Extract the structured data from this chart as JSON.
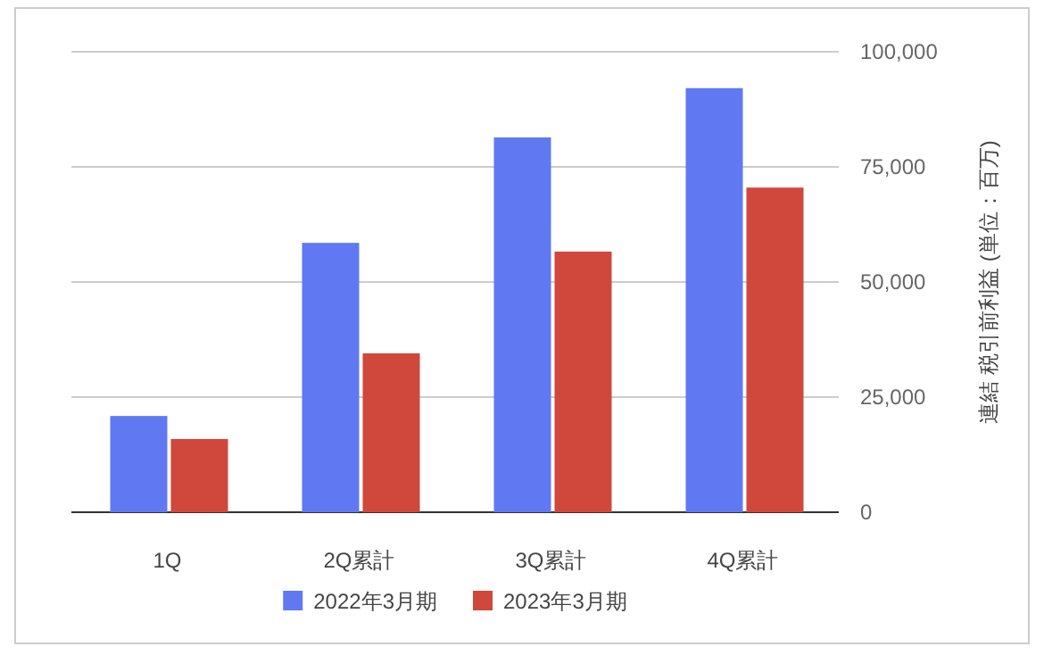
{
  "chart_data": {
    "type": "bar",
    "ylabel": "連結 税引前利益 (単位：百万)",
    "categories": [
      "1Q",
      "2Q累計",
      "3Q累計",
      "4Q累計"
    ],
    "series": [
      {
        "name": "2022年3月期",
        "color": "#6079f2",
        "values": [
          20900,
          58500,
          81400,
          92100
        ]
      },
      {
        "name": "2023年3月期",
        "color": "#d0473b",
        "values": [
          15900,
          34500,
          56600,
          70500
        ]
      }
    ],
    "ylim": [
      0,
      100000
    ],
    "yticks": [
      {
        "value": 0,
        "label": "0"
      },
      {
        "value": 25000,
        "label": "25,000"
      },
      {
        "value": 50000,
        "label": "50,000"
      },
      {
        "value": 75000,
        "label": "75,000"
      },
      {
        "value": 100000,
        "label": "100,000"
      }
    ],
    "grid": "y",
    "legend": "bottom"
  }
}
